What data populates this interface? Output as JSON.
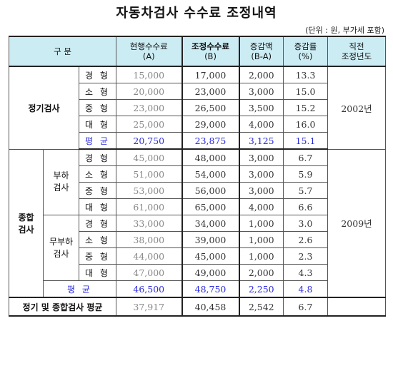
{
  "title": "자동차검사 수수료 조정내역",
  "unit_note": "(단위 : 원, 부가세 포함)",
  "headers": {
    "category": "구  분",
    "current": [
      "현행수수료",
      "(A)"
    ],
    "adjusted": [
      "조정수수료",
      "(B)"
    ],
    "diff": [
      "증감액",
      "(B-A)"
    ],
    "rate": [
      "증감률",
      "(%)"
    ],
    "year": [
      "직전",
      "조정년도"
    ]
  },
  "periodic": {
    "label": "정기검사",
    "year": "2002년",
    "rows": [
      {
        "type": "경 형",
        "current": "15,000",
        "adjusted": "17,000",
        "diff": "2,000",
        "rate": "13.3"
      },
      {
        "type": "소 형",
        "current": "20,000",
        "adjusted": "23,000",
        "diff": "3,000",
        "rate": "15.0"
      },
      {
        "type": "중 형",
        "current": "23,000",
        "adjusted": "26,500",
        "diff": "3,500",
        "rate": "15.2"
      },
      {
        "type": "대 형",
        "current": "25,000",
        "adjusted": "29,000",
        "diff": "4,000",
        "rate": "16.0"
      }
    ],
    "average": {
      "type": "평 균",
      "current": "20,750",
      "adjusted": "23,875",
      "diff": "3,125",
      "rate": "15.1"
    }
  },
  "comprehensive": {
    "label": [
      "종합",
      "검사"
    ],
    "year": "2009년",
    "load": {
      "label": [
        "부하",
        "검사"
      ],
      "rows": [
        {
          "type": "경 형",
          "current": "45,000",
          "adjusted": "48,000",
          "diff": "3,000",
          "rate": "6.7"
        },
        {
          "type": "소 형",
          "current": "51,000",
          "adjusted": "54,000",
          "diff": "3,000",
          "rate": "5.9"
        },
        {
          "type": "중 형",
          "current": "53,000",
          "adjusted": "56,000",
          "diff": "3,000",
          "rate": "5.7"
        },
        {
          "type": "대 형",
          "current": "61,000",
          "adjusted": "65,000",
          "diff": "4,000",
          "rate": "6.6"
        }
      ]
    },
    "noload": {
      "label": [
        "무부하",
        "검사"
      ],
      "rows": [
        {
          "type": "경 형",
          "current": "33,000",
          "adjusted": "34,000",
          "diff": "1,000",
          "rate": "3.0"
        },
        {
          "type": "소 형",
          "current": "38,000",
          "adjusted": "39,000",
          "diff": "1,000",
          "rate": "2.6"
        },
        {
          "type": "중 형",
          "current": "44,000",
          "adjusted": "45,000",
          "diff": "1,000",
          "rate": "2.3"
        },
        {
          "type": "대 형",
          "current": "47,000",
          "adjusted": "49,000",
          "diff": "2,000",
          "rate": "4.3"
        }
      ]
    },
    "average": {
      "type": "평  균",
      "current": "46,500",
      "adjusted": "48,750",
      "diff": "2,250",
      "rate": "4.8"
    }
  },
  "total": {
    "label": "정기 및 종합검사 평균",
    "current": "37,917",
    "adjusted": "40,458",
    "diff": "2,542",
    "rate": "6.7"
  }
}
